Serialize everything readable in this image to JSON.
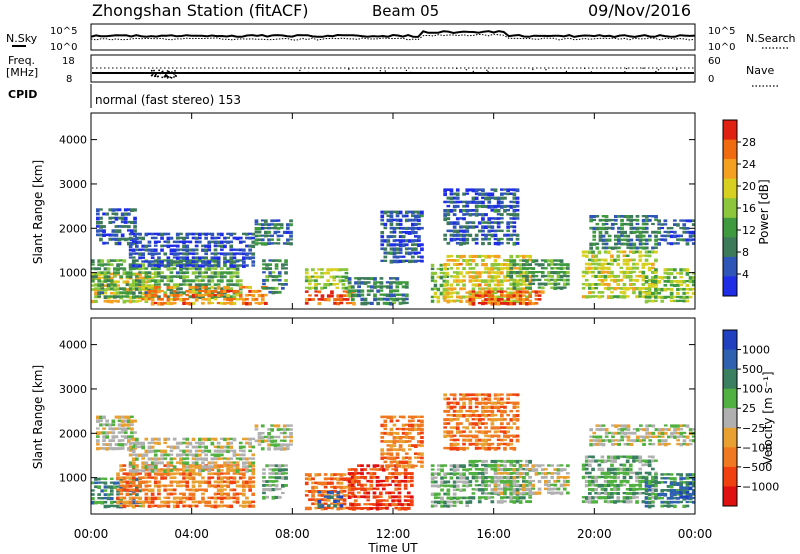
{
  "header": {
    "station": "Zhongshan Station (fitACF)",
    "beam": "Beam 05",
    "date": "09/Nov/2016"
  },
  "small_panels": {
    "nsky_label": "N.Sky",
    "nsky_ticks": [
      "10^5",
      "10^0"
    ],
    "nsearch_label": "N.Search",
    "nsearch_ticks": [
      "10^5",
      "10^0"
    ],
    "freq_label": "Freq.",
    "freq_unit": "[MHz]",
    "freq_ticks": [
      "18",
      "8"
    ],
    "nave_label": "Nave",
    "nave_ticks": [
      "60",
      "0"
    ],
    "cpid_label": "CPID",
    "cpid_value": "normal (fast stereo) 153"
  },
  "colors": {
    "power": [
      "#1f2ee6",
      "#2f55b8",
      "#3d7a5a",
      "#3f9a3f",
      "#8cc63a",
      "#d8d020",
      "#f4a020",
      "#f06a10",
      "#e02010"
    ],
    "velocity": [
      "#2040c0",
      "#3060b0",
      "#3a8060",
      "#50b040",
      "#b0b0b0",
      "#e8a030",
      "#f07820",
      "#f04010",
      "#e01010"
    ]
  },
  "chart_data": [
    {
      "type": "heatmap",
      "name": "power",
      "xlabel": "",
      "ylabel": "Slant Range [km]",
      "xlim": [
        0,
        24
      ],
      "ylim": [
        180,
        4600
      ],
      "yticks": [
        "1000",
        "2000",
        "3000",
        "4000"
      ],
      "colorbar_label": "Power [dB]",
      "colorbar_ticks": [
        "4",
        "8",
        "12",
        "16",
        "20",
        "24",
        "28"
      ],
      "colorbar_range": [
        0,
        32
      ],
      "regions": [
        {
          "t0": 0.0,
          "t1": 2.5,
          "r0": 300,
          "r1": 1000,
          "level": 20
        },
        {
          "t0": 0.0,
          "t1": 6.0,
          "r0": 400,
          "r1": 1300,
          "level": 12
        },
        {
          "t0": 0.2,
          "t1": 1.8,
          "r0": 1600,
          "r1": 2450,
          "level": 6
        },
        {
          "t0": 1.5,
          "t1": 6.5,
          "r0": 1100,
          "r1": 1900,
          "level": 5
        },
        {
          "t0": 6.5,
          "t1": 8.0,
          "r0": 1600,
          "r1": 2200,
          "level": 8
        },
        {
          "t0": 2.0,
          "t1": 7.0,
          "r0": 250,
          "r1": 700,
          "level": 24
        },
        {
          "t0": 6.8,
          "t1": 7.8,
          "r0": 500,
          "r1": 1300,
          "level": 10
        },
        {
          "t0": 8.5,
          "t1": 10.5,
          "r0": 250,
          "r1": 600,
          "level": 28
        },
        {
          "t0": 8.5,
          "t1": 10.2,
          "r0": 600,
          "r1": 1100,
          "level": 16
        },
        {
          "t0": 10.2,
          "t1": 12.6,
          "r0": 250,
          "r1": 900,
          "level": 10
        },
        {
          "t0": 11.5,
          "t1": 13.2,
          "r0": 1200,
          "r1": 2400,
          "level": 6
        },
        {
          "t0": 13.5,
          "t1": 14.2,
          "r0": 300,
          "r1": 1200,
          "level": 14
        },
        {
          "t0": 14.0,
          "t1": 17.5,
          "r0": 300,
          "r1": 1400,
          "level": 20
        },
        {
          "t0": 14.0,
          "t1": 17.0,
          "r0": 1600,
          "r1": 2900,
          "level": 6
        },
        {
          "t0": 15.0,
          "t1": 18.0,
          "r0": 250,
          "r1": 600,
          "level": 28
        },
        {
          "t0": 16.5,
          "t1": 19.0,
          "r0": 600,
          "r1": 1300,
          "level": 12
        },
        {
          "t0": 19.5,
          "t1": 22.5,
          "r0": 400,
          "r1": 1500,
          "level": 18
        },
        {
          "t0": 19.8,
          "t1": 22.5,
          "r0": 1500,
          "r1": 2300,
          "level": 9
        },
        {
          "t0": 22.0,
          "t1": 24.0,
          "r0": 300,
          "r1": 1100,
          "level": 16
        },
        {
          "t0": 22.5,
          "t1": 24.0,
          "r0": 1600,
          "r1": 2200,
          "level": 6
        }
      ]
    },
    {
      "type": "heatmap",
      "name": "velocity",
      "xlabel": "Time UT",
      "ylabel": "Slant Range [km]",
      "xlim": [
        0,
        24
      ],
      "ylim": [
        180,
        4600
      ],
      "xticks": [
        "00:00",
        "04:00",
        "08:00",
        "12:00",
        "16:00",
        "20:00",
        "00:00"
      ],
      "yticks": [
        "1000",
        "2000",
        "3000",
        "4000"
      ],
      "colorbar_label": "Velocity [m s⁻¹]",
      "colorbar_ticks": [
        "1000",
        "500",
        "100",
        "25",
        "−25",
        "−100",
        "−500",
        "−1000"
      ],
      "regions": [
        {
          "t0": 0.0,
          "t1": 2.0,
          "r0": 300,
          "r1": 1000,
          "level": 2
        },
        {
          "t0": 1.0,
          "t1": 6.5,
          "r0": 300,
          "r1": 1300,
          "level": 6
        },
        {
          "t0": 0.2,
          "t1": 1.8,
          "r0": 1600,
          "r1": 2400,
          "level": 4
        },
        {
          "t0": 1.5,
          "t1": 6.5,
          "r0": 1100,
          "r1": 1900,
          "level": 4
        },
        {
          "t0": 6.5,
          "t1": 8.0,
          "r0": 1600,
          "r1": 2200,
          "level": 4
        },
        {
          "t0": 6.8,
          "t1": 7.8,
          "r0": 500,
          "r1": 1300,
          "level": 3
        },
        {
          "t0": 8.5,
          "t1": 10.5,
          "r0": 250,
          "r1": 1100,
          "level": 6
        },
        {
          "t0": 9.0,
          "t1": 10.0,
          "r0": 300,
          "r1": 700,
          "level": 1
        },
        {
          "t0": 10.2,
          "t1": 12.8,
          "r0": 250,
          "r1": 1300,
          "level": 7
        },
        {
          "t0": 11.5,
          "t1": 13.2,
          "r0": 1200,
          "r1": 2400,
          "level": 6
        },
        {
          "t0": 13.5,
          "t1": 15.0,
          "r0": 300,
          "r1": 1300,
          "level": 3
        },
        {
          "t0": 14.0,
          "t1": 17.0,
          "r0": 1600,
          "r1": 2900,
          "level": 6
        },
        {
          "t0": 15.0,
          "t1": 17.5,
          "r0": 400,
          "r1": 1400,
          "level": 3
        },
        {
          "t0": 16.0,
          "t1": 19.0,
          "r0": 600,
          "r1": 1300,
          "level": 4
        },
        {
          "t0": 19.5,
          "t1": 22.5,
          "r0": 400,
          "r1": 1500,
          "level": 3
        },
        {
          "t0": 19.8,
          "t1": 24.0,
          "r0": 1700,
          "r1": 2200,
          "level": 4
        },
        {
          "t0": 22.0,
          "t1": 24.0,
          "r0": 300,
          "r1": 1100,
          "level": 2
        },
        {
          "t0": 23.0,
          "t1": 24.0,
          "r0": 500,
          "r1": 900,
          "level": 1
        }
      ]
    }
  ]
}
